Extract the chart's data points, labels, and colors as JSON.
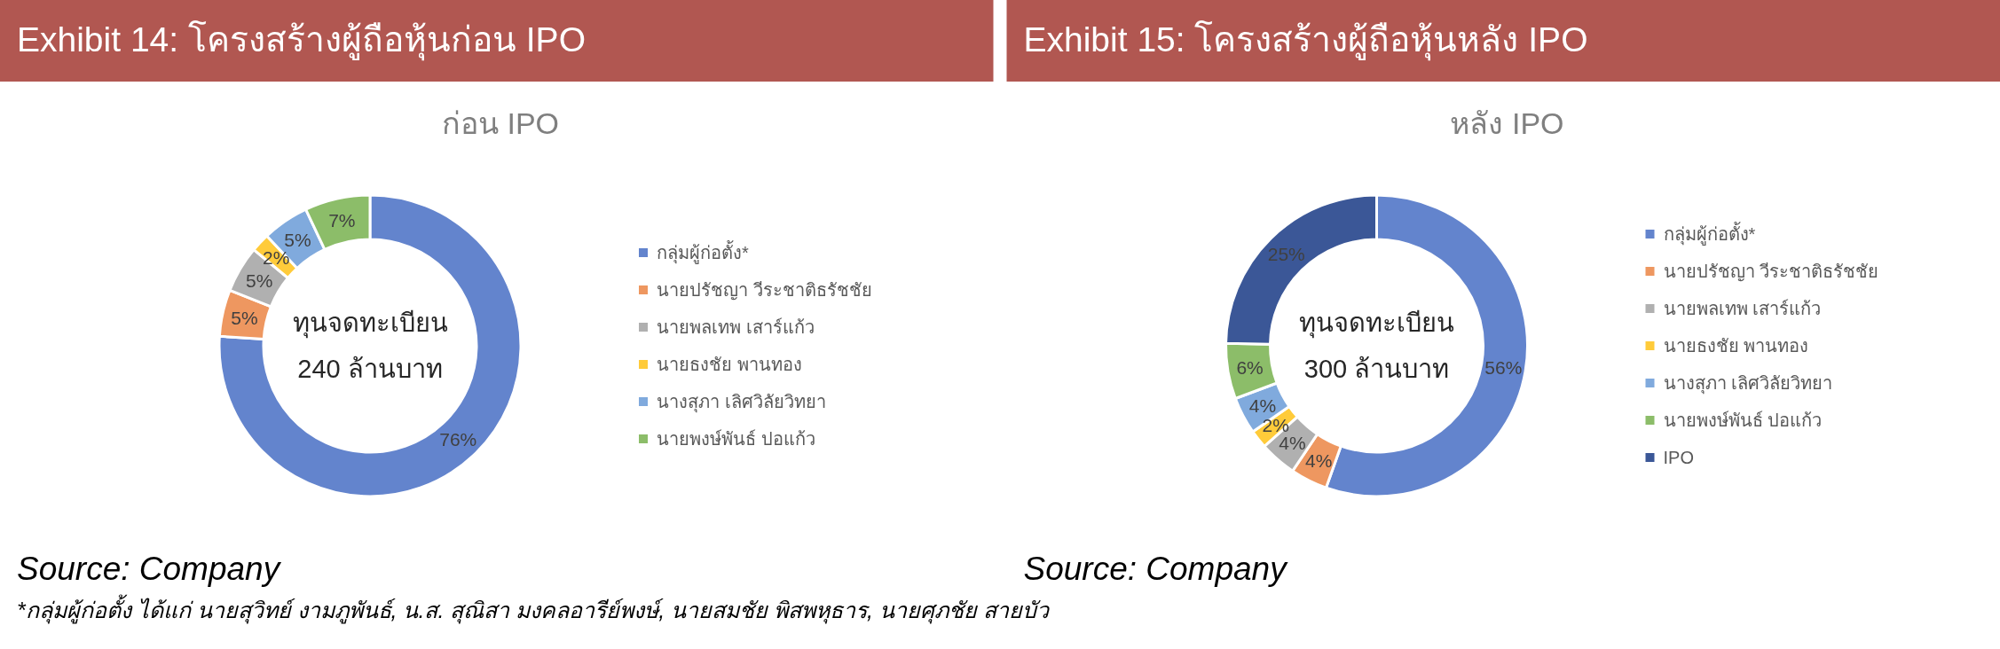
{
  "chart_data": [
    {
      "type": "donut",
      "title": "Exhibit 14: โครงสร้างผู้ถือหุ้นก่อน IPO",
      "subtitle": "ก่อน IPO",
      "categories": [
        "กลุ่มผู้ก่อตั้ง*",
        "นายปรัชญา วีระชาติธรัชชัย",
        "นายพลเทพ เสาร์แก้ว",
        "นายธงชัย พานทอง",
        "นางสุภา เลิศวิลัยวิทยา",
        "นายพงษ์พันธ์ ปอแก้ว"
      ],
      "values": [
        76,
        5,
        5,
        2,
        5,
        7
      ],
      "colors": [
        "#6384cd",
        "#ee9760",
        "#b0b0b0",
        "#ffcb3a",
        "#80aadd",
        "#8cbd69"
      ],
      "value_labels": [
        "76%",
        "5%",
        "5%",
        "2%",
        "5%",
        "7%"
      ],
      "legend": "right",
      "annotations": [
        "ทุนจดทะเบียน\n240 ล้านบาท",
        "Source: Company",
        "*กลุ่มผู้ก่อตั้ง ได้แก่ นายสุวิทย์ งามภูพันธ์, น.ส. สุณิสา มงคลอารีย์พงษ์, นายสมชัย พิสพหุธาร, นายศุภชัย สายบัว"
      ]
    },
    {
      "type": "donut",
      "title": "Exhibit 15: โครงสร้างผู้ถือหุ้นหลัง IPO",
      "subtitle": "หลัง IPO",
      "categories": [
        "กลุ่มผู้ก่อตั้ง*",
        "นายปรัชญา วีระชาติธรัชชัย",
        "นายพลเทพ เสาร์แก้ว",
        "นายธงชัย พานทอง",
        "นางสุภา เลิศวิลัยวิทยา",
        "นายพงษ์พันธ์ ปอแก้ว",
        "IPO"
      ],
      "values": [
        56,
        4,
        4,
        2,
        4,
        6,
        25
      ],
      "colors": [
        "#6384cd",
        "#ee9760",
        "#b0b0b0",
        "#ffcb3a",
        "#80aadd",
        "#8cbd69",
        "#3b5797"
      ],
      "value_labels": [
        "56%",
        "4%",
        "4%",
        "2%",
        "4%",
        "6%",
        "25%"
      ],
      "legend": "right",
      "annotations": [
        "ทุนจดทะเบียน\n300 ล้านบาท",
        "Source: Company"
      ]
    }
  ]
}
